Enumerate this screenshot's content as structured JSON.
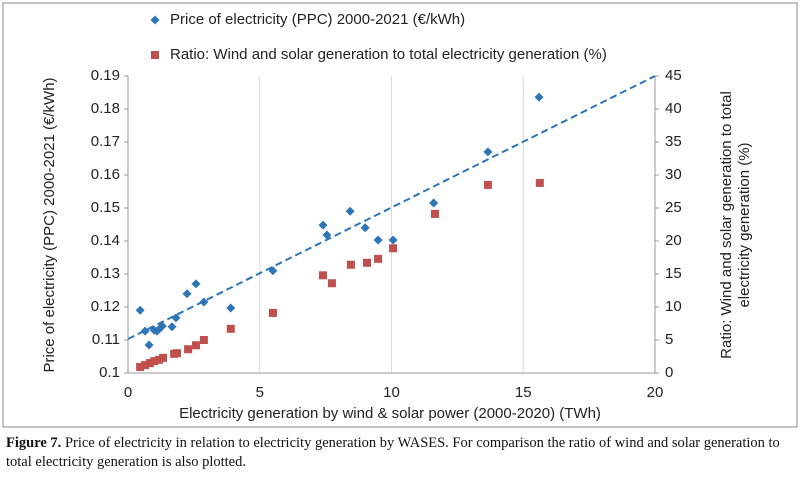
{
  "chart_data": {
    "type": "scatter",
    "xlabel": "Electricity generation by wind & solar power (2000-2020) (TWh)",
    "ylabel": "Price of electricity (PPC) 2000-2021  (€/kWh)",
    "y2label": [
      "Ratio: Wind and solar generation to total",
      "electricity generation (%)"
    ],
    "xlim": [
      0,
      20
    ],
    "xticks": [
      0,
      5,
      10,
      15,
      20
    ],
    "ylim": [
      0.1,
      0.19
    ],
    "yticks": [
      0.1,
      0.11,
      0.12,
      0.13,
      0.14,
      0.15,
      0.16,
      0.17,
      0.18,
      0.19
    ],
    "y2lim": [
      0,
      45
    ],
    "y2ticks": [
      0,
      5,
      10,
      15,
      20,
      25,
      30,
      35,
      40,
      45
    ],
    "grid": true,
    "legend": "top",
    "series": [
      {
        "name": "Price of electricity (PPC) 2000-2021  (€/kWh)",
        "color": "#2e75b6",
        "marker": "diamond",
        "axis": "y",
        "x": [
          0.46,
          0.65,
          0.8,
          0.99,
          1.1,
          1.21,
          1.3,
          1.67,
          1.82,
          2.24,
          2.58,
          2.88,
          3.9,
          5.5,
          7.4,
          7.55,
          8.43,
          9.0,
          9.49,
          10.06,
          11.6,
          13.66,
          15.6
        ],
        "values": [
          0.119,
          0.1127,
          0.1085,
          0.113,
          0.1127,
          0.1135,
          0.1142,
          0.114,
          0.1167,
          0.124,
          0.127,
          0.1215,
          0.1197,
          0.131,
          0.1448,
          0.1418,
          0.149,
          0.144,
          0.1403,
          0.1403,
          0.1515,
          0.167,
          0.1836
        ]
      },
      {
        "name": "Ratio: Wind and solar generation to total electricity generation (%)",
        "color": "#c0504d",
        "marker": "square",
        "axis": "y2",
        "x": [
          0.46,
          0.65,
          0.83,
          1.0,
          1.18,
          1.33,
          1.75,
          1.86,
          2.28,
          2.58,
          2.88,
          3.9,
          5.5,
          7.4,
          7.74,
          8.46,
          9.07,
          9.49,
          10.06,
          11.65,
          13.66,
          15.63
        ],
        "values": [
          0.9,
          1.2,
          1.5,
          1.8,
          2.0,
          2.3,
          2.9,
          3.0,
          3.6,
          4.2,
          5.0,
          6.7,
          9.1,
          14.8,
          13.6,
          16.4,
          16.7,
          17.3,
          18.9,
          24.1,
          28.5,
          28.8
        ]
      }
    ],
    "trendline": {
      "color": "#2e75b6",
      "x": [
        0,
        20
      ],
      "values": [
        0.1103,
        0.19
      ]
    }
  },
  "caption": {
    "label": "Figure 7.",
    "text": "Price of electricity in relation to electricity generation by WASES. For comparison the ratio of wind and solar generation to total electricity generation is also plotted."
  }
}
